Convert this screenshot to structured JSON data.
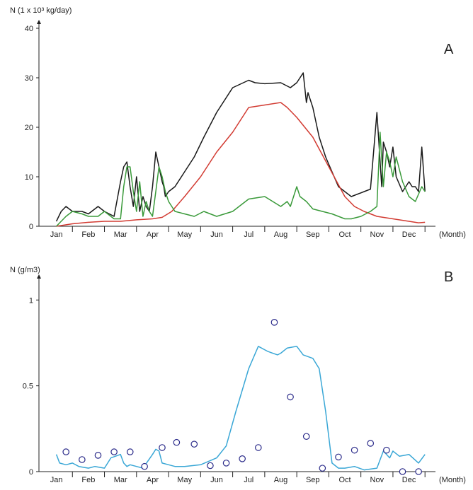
{
  "chart_data": [
    {
      "panel": "A",
      "type": "line",
      "ylabel": "N (1 x 10³ kg/day)",
      "xlabel": "(Month)",
      "ylim": [
        0,
        40
      ],
      "yticks": [
        0,
        10,
        20,
        30,
        40
      ],
      "categories": [
        "Jan",
        "Feb",
        "Mar",
        "Apr",
        "May",
        "Jun",
        "Jul",
        "Aug",
        "Sep",
        "Oct",
        "Nov",
        "Dec"
      ],
      "colors": {
        "black": "#1a1a1a",
        "red": "#d23b32",
        "green": "#3a9a3a"
      },
      "series": [
        {
          "color": "black",
          "x": [
            0,
            0.15,
            0.3,
            0.5,
            0.8,
            1,
            1.3,
            1.5,
            1.8,
            2,
            2.1,
            2.2,
            2.3,
            2.4,
            2.5,
            2.6,
            2.7,
            2.8,
            2.9,
            3,
            3.1,
            3.2,
            3.3,
            3.35,
            3.4,
            3.5,
            3.7,
            4,
            4.3,
            4.6,
            5,
            5.5,
            6,
            6.2,
            6.5,
            7,
            7.3,
            7.5,
            7.7,
            7.8,
            7.85,
            7.9,
            8,
            8.2,
            8.4,
            8.6,
            8.8,
            9,
            9.2,
            9.4,
            9.6,
            9.8,
            10,
            10.15,
            10.2,
            10.3,
            10.4,
            10.5,
            10.6,
            10.8,
            11,
            11.1,
            11.2,
            11.3,
            11.4,
            11.5
          ],
          "y": [
            1,
            3,
            4,
            3,
            3,
            2.5,
            4,
            3,
            2,
            9,
            12,
            13,
            8,
            4,
            10,
            3,
            6,
            4,
            3,
            8,
            15,
            12,
            9,
            8,
            6,
            7,
            8,
            11,
            14,
            18,
            23,
            28,
            29.5,
            29,
            28.8,
            29,
            28,
            29,
            31,
            25,
            27,
            26,
            24,
            18,
            14,
            11,
            8,
            7,
            6,
            6.5,
            7,
            7.5,
            23,
            8,
            17,
            15,
            12,
            16,
            10,
            7,
            9,
            8,
            8,
            7,
            16,
            7
          ]
        },
        {
          "color": "red",
          "x": [
            0,
            0.5,
            1,
            1.5,
            2,
            2.5,
            3,
            3.3,
            3.6,
            4,
            4.5,
            5,
            5.5,
            6,
            6.5,
            7,
            7.2,
            7.5,
            8,
            8.5,
            9,
            9.3,
            9.6,
            10,
            10.5,
            11,
            11.3,
            11.5
          ],
          "y": [
            0,
            0.5,
            0.8,
            1,
            1,
            1.3,
            1.5,
            1.8,
            3,
            6,
            10,
            15,
            19,
            24,
            24.5,
            25,
            24,
            22,
            18,
            12,
            6,
            4,
            3,
            2,
            1.5,
            1,
            0.7,
            0.8
          ]
        },
        {
          "color": "green",
          "x": [
            0,
            0.3,
            0.5,
            0.8,
            1,
            1.3,
            1.5,
            1.8,
            2,
            2.1,
            2.2,
            2.3,
            2.4,
            2.5,
            2.6,
            2.7,
            2.8,
            2.9,
            3,
            3.1,
            3.2,
            3.3,
            3.4,
            3.5,
            3.7,
            4,
            4.3,
            4.6,
            5,
            5.5,
            6,
            6.5,
            7,
            7.2,
            7.3,
            7.5,
            7.6,
            7.8,
            8,
            8.3,
            8.6,
            9,
            9.2,
            9.5,
            9.8,
            10,
            10.1,
            10.2,
            10.3,
            10.4,
            10.5,
            10.6,
            10.8,
            11,
            11.2,
            11.4,
            11.5
          ],
          "y": [
            0,
            2,
            3,
            2.5,
            2,
            2,
            3,
            1.5,
            1.5,
            8,
            12,
            12,
            7,
            3,
            9,
            2,
            5,
            3,
            2,
            7,
            12,
            10,
            7,
            5,
            3,
            2.5,
            2,
            3,
            2,
            3,
            5.5,
            6,
            4,
            5,
            4,
            8,
            6,
            5,
            3.5,
            3,
            2.5,
            1.5,
            1.5,
            2,
            3,
            4,
            19,
            8,
            15,
            13,
            10,
            14,
            9,
            6,
            5,
            8,
            7
          ]
        }
      ]
    },
    {
      "panel": "B",
      "type": "line",
      "ylabel": "N (g/m3)",
      "xlabel": "(Month)",
      "ylim": [
        0,
        1.1
      ],
      "yticks": [
        0,
        0.5,
        1
      ],
      "yticklabels": [
        "0",
        "0.5",
        "1"
      ],
      "categories": [
        "Jan",
        "Feb",
        "Mar",
        "Apr",
        "May",
        "Jun",
        "Jul",
        "Aug",
        "Sep",
        "Oct",
        "Nov",
        "Dec"
      ],
      "colors": {
        "line": "#3aa7d6",
        "marker": "#2b2b8a"
      },
      "series": [
        {
          "kind": "line",
          "color": "line",
          "x": [
            0,
            0.1,
            0.3,
            0.5,
            0.7,
            1,
            1.2,
            1.5,
            1.7,
            2,
            2.1,
            2.2,
            2.3,
            2.5,
            2.7,
            3,
            3.1,
            3.2,
            3.3,
            3.5,
            3.7,
            4,
            4.5,
            5,
            5.3,
            5.6,
            6,
            6.3,
            6.6,
            6.9,
            7,
            7.2,
            7.5,
            7.7,
            8,
            8.2,
            8.4,
            8.6,
            8.8,
            9,
            9.3,
            9.6,
            10,
            10.2,
            10.4,
            10.5,
            10.7,
            11,
            11.3,
            11.5
          ],
          "y": [
            0.1,
            0.05,
            0.04,
            0.05,
            0.03,
            0.02,
            0.03,
            0.02,
            0.08,
            0.1,
            0.05,
            0.03,
            0.04,
            0.03,
            0.02,
            0.1,
            0.13,
            0.12,
            0.05,
            0.04,
            0.03,
            0.03,
            0.04,
            0.08,
            0.15,
            0.35,
            0.6,
            0.73,
            0.7,
            0.68,
            0.69,
            0.72,
            0.73,
            0.68,
            0.66,
            0.6,
            0.35,
            0.05,
            0.02,
            0.02,
            0.03,
            0.01,
            0.02,
            0.12,
            0.08,
            0.12,
            0.09,
            0.1,
            0.05,
            0.1
          ]
        },
        {
          "kind": "markers",
          "color": "marker",
          "x": [
            0.3,
            0.8,
            1.3,
            1.8,
            2.3,
            2.75,
            3.3,
            3.75,
            4.3,
            4.8,
            5.3,
            5.8,
            6.3,
            6.8,
            7.3,
            7.8,
            8.3,
            8.8,
            9.3,
            9.8,
            10.3,
            10.8,
            11.3
          ],
          "y": [
            0.115,
            0.07,
            0.095,
            0.115,
            0.115,
            0.03,
            0.14,
            0.17,
            0.16,
            0.035,
            0.05,
            0.075,
            0.14,
            0.87,
            0.435,
            0.205,
            0.02,
            0.085,
            0.125,
            0.165,
            0.125,
            0.0,
            0.0
          ]
        }
      ]
    }
  ],
  "labels": {
    "panelA": "A",
    "panelB": "B",
    "ylabelA": "N (1 x 10³ kg/day)",
    "ylabelB": "N (g/m3)",
    "xlabel": "(Month)"
  }
}
